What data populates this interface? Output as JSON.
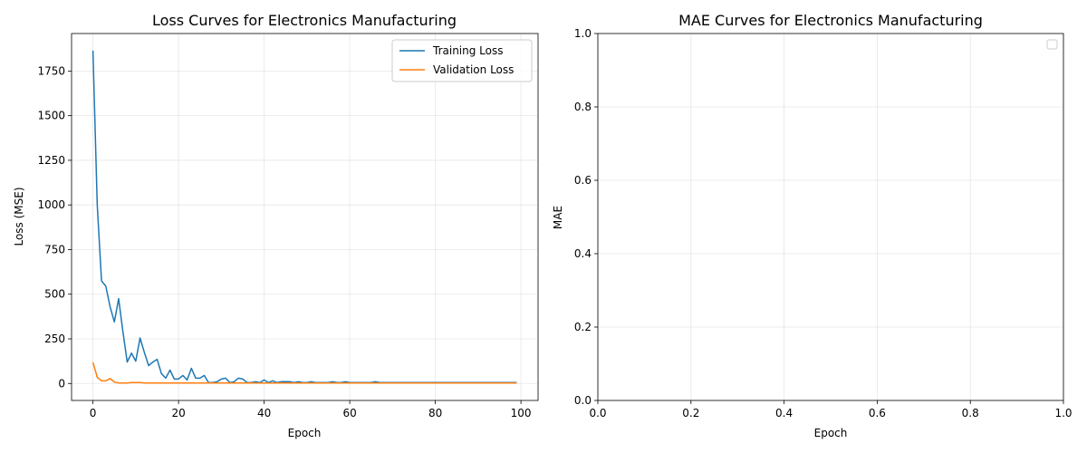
{
  "chart_data": [
    {
      "type": "line",
      "title": "Loss Curves for Electronics Manufacturing",
      "xlabel": "Epoch",
      "ylabel": "Loss (MSE)",
      "xlim": [
        -5,
        104
      ],
      "ylim": [
        -95,
        1960
      ],
      "xticks": [
        0,
        20,
        40,
        60,
        80,
        100
      ],
      "yticks": [
        0,
        250,
        500,
        750,
        1000,
        1250,
        1500,
        1750
      ],
      "grid": true,
      "legend": "top-right",
      "series": [
        {
          "name": "Training Loss",
          "color": "#1f77b4",
          "x": [
            0,
            1,
            2,
            3,
            4,
            5,
            6,
            7,
            8,
            9,
            10,
            11,
            12,
            13,
            14,
            15,
            16,
            17,
            18,
            19,
            20,
            21,
            22,
            23,
            24,
            25,
            26,
            27,
            28,
            29,
            30,
            31,
            32,
            33,
            34,
            35,
            36,
            37,
            38,
            39,
            40,
            41,
            42,
            43,
            44,
            45,
            46,
            47,
            48,
            49,
            50,
            51,
            52,
            53,
            54,
            55,
            56,
            57,
            58,
            59,
            60,
            61,
            62,
            63,
            64,
            65,
            66,
            67,
            68,
            69,
            70,
            71,
            72,
            73,
            74,
            75,
            76,
            77,
            78,
            79,
            80,
            81,
            82,
            83,
            84,
            85,
            86,
            87,
            88,
            89,
            90,
            91,
            92,
            93,
            94,
            95,
            96,
            97,
            98,
            99
          ],
          "values": [
            1865,
            1000,
            575,
            545,
            430,
            345,
            475,
            290,
            120,
            170,
            125,
            255,
            175,
            100,
            120,
            135,
            55,
            30,
            75,
            25,
            25,
            45,
            20,
            85,
            30,
            30,
            45,
            5,
            5,
            10,
            25,
            30,
            5,
            10,
            30,
            25,
            5,
            5,
            10,
            5,
            20,
            5,
            15,
            5,
            10,
            10,
            10,
            5,
            10,
            5,
            5,
            10,
            5,
            5,
            5,
            5,
            10,
            5,
            5,
            10,
            5,
            5,
            5,
            5,
            5,
            5,
            10,
            5,
            5,
            5,
            5,
            5,
            5,
            5,
            5,
            5,
            5,
            5,
            5,
            5,
            5,
            5,
            5,
            5,
            5,
            5,
            5,
            5,
            5,
            5,
            5,
            5,
            5,
            5,
            5,
            5,
            5,
            5,
            5,
            5
          ]
        },
        {
          "name": "Validation Loss",
          "color": "#ff7f0e",
          "x": [
            0,
            1,
            2,
            3,
            4,
            5,
            6,
            7,
            8,
            9,
            10,
            11,
            12,
            13,
            14,
            15,
            16,
            17,
            18,
            19,
            20,
            21,
            22,
            23,
            24,
            25,
            26,
            27,
            28,
            29,
            30,
            31,
            32,
            33,
            34,
            35,
            36,
            37,
            38,
            39,
            40,
            41,
            42,
            43,
            44,
            45,
            46,
            47,
            48,
            49,
            50,
            51,
            52,
            53,
            54,
            55,
            56,
            57,
            58,
            59,
            60,
            61,
            62,
            63,
            64,
            65,
            66,
            67,
            68,
            69,
            70,
            71,
            72,
            73,
            74,
            75,
            76,
            77,
            78,
            79,
            80,
            81,
            82,
            83,
            84,
            85,
            86,
            87,
            88,
            89,
            90,
            91,
            92,
            93,
            94,
            95,
            96,
            97,
            98,
            99
          ],
          "values": [
            118,
            35,
            15,
            15,
            28,
            8,
            3,
            3,
            3,
            5,
            5,
            5,
            3,
            3,
            3,
            3,
            3,
            3,
            3,
            3,
            3,
            3,
            3,
            3,
            3,
            3,
            3,
            3,
            3,
            3,
            3,
            3,
            3,
            3,
            3,
            3,
            3,
            3,
            3,
            3,
            3,
            3,
            3,
            3,
            3,
            3,
            3,
            3,
            3,
            3,
            3,
            3,
            3,
            3,
            3,
            3,
            3,
            3,
            3,
            3,
            3,
            3,
            3,
            3,
            3,
            3,
            3,
            3,
            3,
            3,
            3,
            3,
            3,
            3,
            3,
            3,
            3,
            3,
            3,
            3,
            3,
            3,
            3,
            3,
            3,
            3,
            3,
            3,
            3,
            3,
            3,
            3,
            3,
            3,
            3,
            3,
            3,
            3,
            3,
            3
          ]
        }
      ]
    },
    {
      "type": "line",
      "title": "MAE Curves for Electronics Manufacturing",
      "xlabel": "Epoch",
      "ylabel": "MAE",
      "xlim": [
        0,
        1
      ],
      "ylim": [
        0,
        1
      ],
      "xticks": [
        0.0,
        0.2,
        0.4,
        0.6,
        0.8,
        1.0
      ],
      "yticks": [
        0.0,
        0.2,
        0.4,
        0.6,
        0.8,
        1.0
      ],
      "grid": true,
      "legend": "top-right",
      "series": []
    }
  ]
}
